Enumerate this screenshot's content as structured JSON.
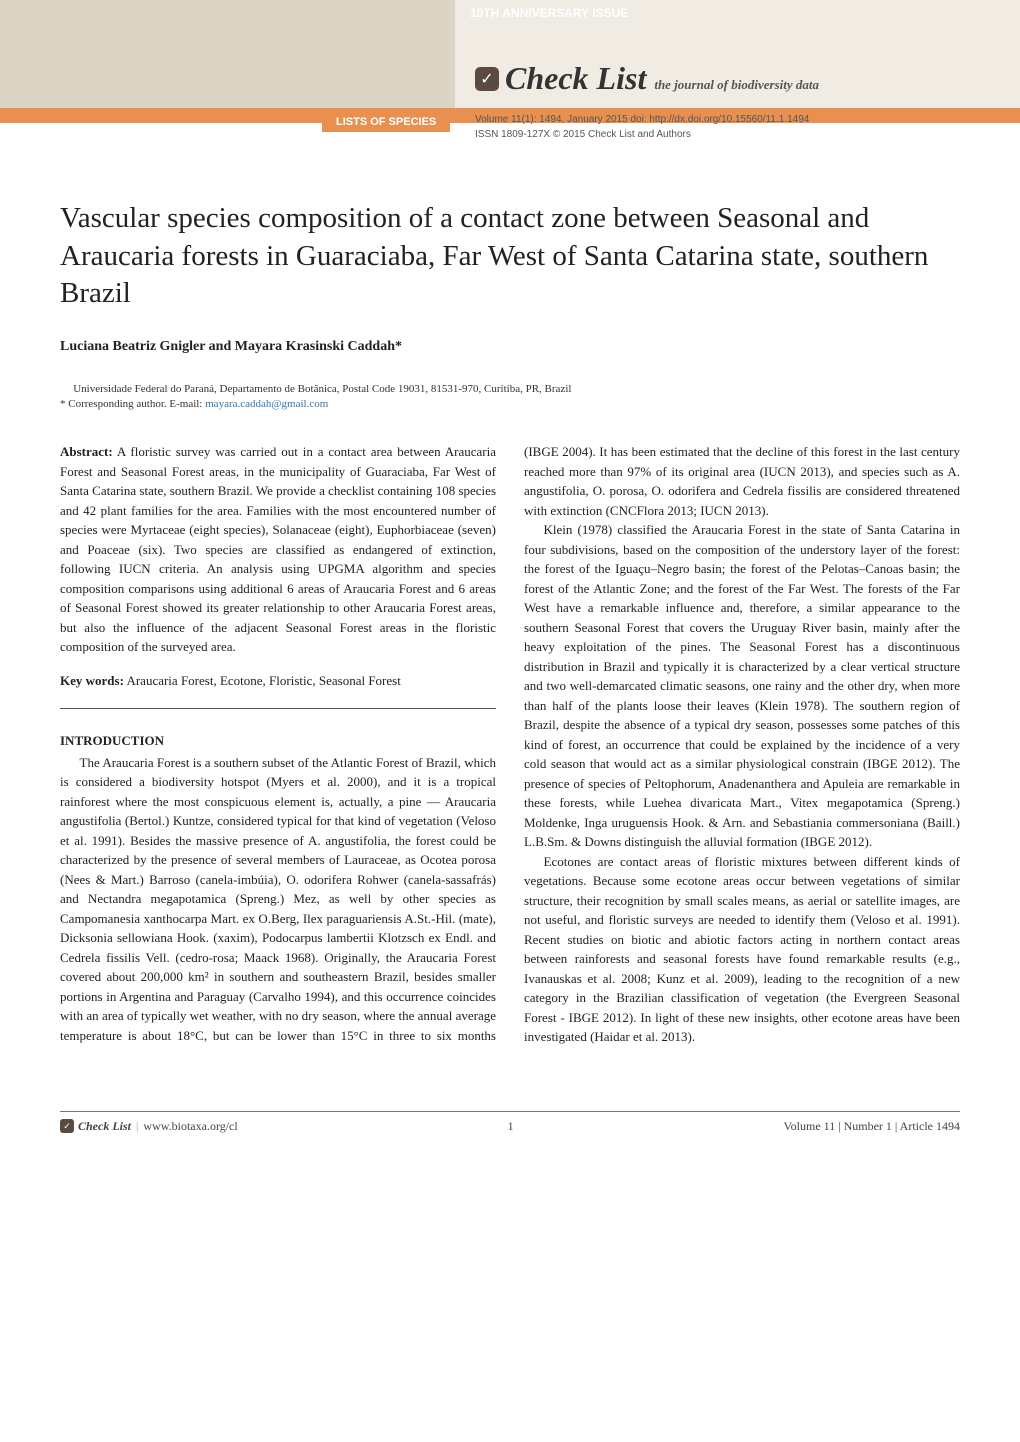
{
  "header": {
    "anniversary": "10TH ANNIVERSARY ISSUE",
    "journal_name": "Check List",
    "journal_tagline": "the journal of biodiversity data",
    "section_label": "LISTS OF SPECIES",
    "volume_line": "Volume 11(1): 1494, January 2015   doi: http://dx.doi.org/10.15560/11.1.1494",
    "issn_line": "ISSN 1809-127X    © 2015 Check List and Authors"
  },
  "title": "Vascular species composition of a contact zone between Seasonal and Araucaria forests in Guaraciaba, Far West of Santa Catarina state, southern Brazil",
  "authors_html": "Luciana Beatriz Gnigler and Mayara Krasinski Caddah*",
  "affiliation": "Universidade Federal do Paraná, Departamento de Botânica, Postal Code 19031, 81531-970, Curitiba, PR, Brazil",
  "corresponding_label": "*   Corresponding author. E-mail: ",
  "corresponding_email": "mayara.caddah@gmail.com",
  "abstract_label": "Abstract:",
  "abstract_text": " A floristic survey was carried out in a contact area between Araucaria Forest and Seasonal Forest areas, in the municipality of Guaraciaba, Far West of Santa Catarina state, southern Brazil. We provide a checklist containing 108 species and 42 plant families for the area. Families with the most encountered number of species were Myrtaceae (eight species), Solanaceae (eight), Euphorbiaceae (seven) and Poaceae (six). Two species are classified as endangered of extinction, following IUCN criteria. An analysis using UPGMA algorithm and species composition comparisons using additional 6 areas of Araucaria Forest and 6 areas of Seasonal Forest showed its greater relationship to other Araucaria Forest areas, but also the influence of the adjacent Seasonal Forest areas in the floristic composition of the surveyed area.",
  "keywords_label": "Key words:",
  "keywords_text": " Araucaria Forest, Ecotone, Floristic, Seasonal Forest",
  "intro_label": "INTRODUCTION",
  "intro_p1": "The Araucaria Forest is a southern subset of the Atlantic Forest of Brazil, which is considered a biodiversity hotspot (Myers et al. 2000), and it is a tropical rainforest where the most conspicuous element is, actually, a pine — Araucaria angustifolia (Bertol.) Kuntze, considered typical for that kind of vegetation (Veloso et al. 1991). Besides the massive presence of A. angustifolia, the forest could be characterized by the presence of several members of Lauraceae, as Ocotea porosa (Nees & Mart.) Barroso (canela-imbúia), O. odorifera Rohwer (canela-sassafrás) and Nectandra megapotamica (Spreng.) Mez, as well by other species as Campomanesia xanthocarpa Mart. ex O.Berg, Ilex paraguariensis A.St.-Hil. (mate), Dicksonia sellowiana Hook. (xaxim), Podocarpus lambertii Klotzsch ex Endl. and Cedrela fissilis Vell. (cedro-rosa; Maack 1968). Originally, the Araucaria Forest covered about 200,000 km² in southern and southeastern Brazil, besides smaller portions in Argentina and Paraguay (Carvalho 1994), and this occurrence coincides with an area of typically wet weather, with no dry season, where the annual average temperature is about 18°C, but can be lower than 15°C in three to six months (IBGE 2004). It has been estimated that the decline of this forest in the last century reached more than 97% of its original area (IUCN 2013), and species such as A. angustifolia, O. porosa, O. odorifera and Cedrela fissilis are considered threatened with extinction (CNCFlora 2013; IUCN 2013).",
  "intro_p2": "Klein (1978) classified the Araucaria Forest in the state of Santa Catarina in four subdivisions, based on the composition of the understory layer of the forest: the forest of the Iguaçu–Negro basin; the forest of the Pelotas–Canoas basin; the forest of the Atlantic Zone; and the forest of the Far West. The forests of the Far West have a remarkable influence and, therefore, a similar appearance to the southern Seasonal Forest that covers the Uruguay River basin, mainly after the heavy exploitation of the pines. The Seasonal Forest has a discontinuous distribution in Brazil and typically it is characterized by a clear vertical structure and two well-demarcated climatic seasons, one rainy and the other dry, when more than half of the plants loose their leaves (Klein 1978). The southern region of Brazil, despite the absence of a typical dry season, possesses some patches of this kind of forest, an occurrence that could be explained by the incidence of a very cold season that would act as a similar physiological constrain (IBGE 2012). The presence of species of Peltophorum, Anadenanthera and Apuleia are remarkable in these forests, while Luehea divaricata Mart., Vitex megapotamica (Spreng.) Moldenke, Inga uruguensis Hook. & Arn. and Sebastiania commersoniana (Baill.) L.B.Sm. & Downs distinguish the alluvial formation (IBGE 2012).",
  "intro_p3": "Ecotones are contact areas of floristic mixtures between different kinds of vegetations. Because some ecotone areas occur between vegetations of similar structure, their recognition by small scales means, as aerial or satellite images, are not useful, and floristic surveys are needed to identify them (Veloso et al. 1991). Recent studies on biotic and abiotic factors acting in northern contact areas between rainforests and seasonal forests have found remarkable results (e.g., Ivanauskas et al. 2008; Kunz et al. 2009), leading to the recognition of a new category in the Brazilian classification of vegetation (the Evergreen Seasonal Forest - IBGE 2012). In light of these new insights, other ecotone areas have been investigated (Haidar et al. 2013).",
  "footer": {
    "brand": "Check List",
    "url": "www.biotaxa.org/cl",
    "pagenum": "1",
    "right": "Volume 11 | Number 1 | Article 1494"
  },
  "colors": {
    "orange": "#e89050",
    "beige": "#f0ece4",
    "map": "#d8d0c0",
    "logo": "#5a4a3f",
    "link": "#3478b0"
  }
}
